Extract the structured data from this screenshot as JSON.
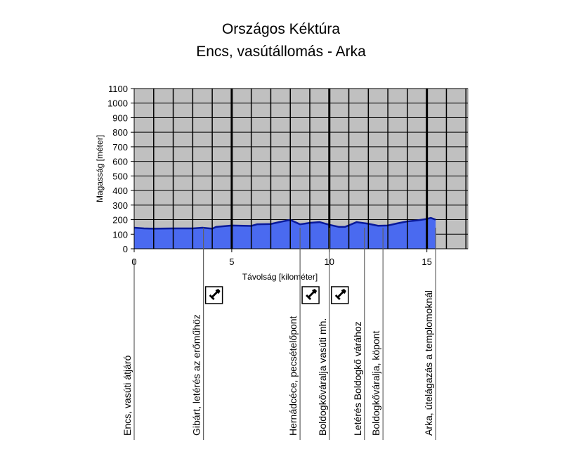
{
  "chart_data": {
    "type": "area",
    "title": "Országos Kéktúra",
    "subtitle": "Encs, vasútállomás - Arka",
    "xlabel": "Távolság [kilométer]",
    "ylabel": "Magasság [méter]",
    "xlim": [
      0,
      17.1
    ],
    "ylim": [
      0,
      1100
    ],
    "xticks": [
      0,
      5,
      10,
      15
    ],
    "yticks": [
      0,
      100,
      200,
      300,
      400,
      500,
      600,
      700,
      800,
      900,
      1000,
      1100
    ],
    "grid": true,
    "colors": {
      "fill": "#4a6af0",
      "line": "#0a1a9a",
      "plot_bg": "#c0c0c0"
    },
    "series": [
      {
        "name": "Magasság",
        "x": [
          0,
          0.5,
          1,
          2,
          3,
          3.5,
          4,
          4.2,
          4.6,
          5,
          6,
          6.3,
          7,
          7.5,
          8,
          8.5,
          9,
          9.5,
          10,
          10.5,
          10.8,
          11.4,
          12,
          12.5,
          13,
          13.5,
          14,
          14.5,
          15,
          15.2,
          15.45
        ],
        "y": [
          145,
          140,
          138,
          140,
          140,
          145,
          138,
          150,
          155,
          160,
          157,
          168,
          170,
          185,
          198,
          168,
          178,
          183,
          165,
          150,
          150,
          183,
          172,
          158,
          160,
          175,
          188,
          195,
          205,
          212,
          200
        ]
      }
    ],
    "waypoints": [
      {
        "km": 0,
        "label": "Encs, vasúti átjáró",
        "stamp": false
      },
      {
        "km": 3.55,
        "label": "Gibárt, letérés az erőműhöz",
        "stamp": true
      },
      {
        "km": 8.5,
        "label": "Hernádcéce, pecsételőpont",
        "stamp": true
      },
      {
        "km": 10.0,
        "label": "Boldogkőváralja vasúti mh.",
        "stamp": true
      },
      {
        "km": 11.8,
        "label": "Letérés Boldogkő várához",
        "stamp": false
      },
      {
        "km": 12.75,
        "label": "Boldogkőváralja, köpont",
        "stamp": false
      },
      {
        "km": 15.45,
        "label": "Arka, útelágazás a templomoknál",
        "stamp": false
      }
    ]
  }
}
